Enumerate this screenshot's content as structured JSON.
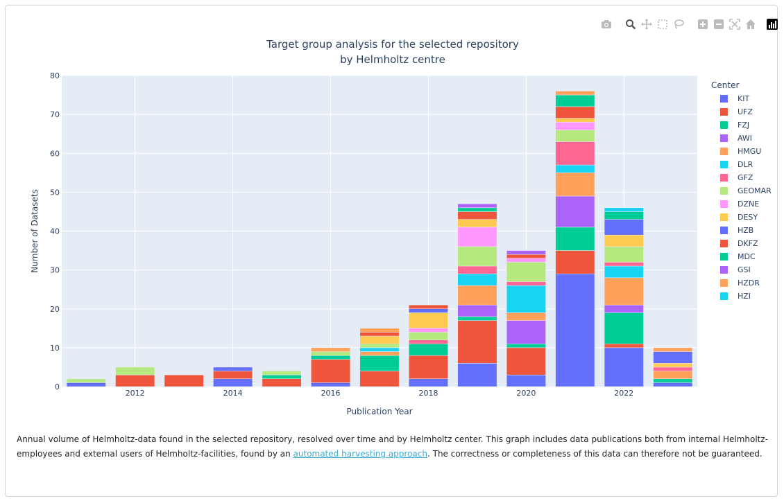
{
  "modebar": {
    "buttons": [
      "camera-icon",
      "zoom-icon",
      "pan-icon",
      "box-select-icon",
      "lasso-select-icon",
      "zoom-in-icon",
      "zoom-out-icon",
      "autoscale-icon",
      "reset-axes-icon",
      "plotly-logo-icon"
    ]
  },
  "caption": {
    "before": "Annual volume of Helmholtz-data found in the selected repository, resolved over time and by Helmholtz center. This graph includes data publications both from internal Helmholtz-employees and external users of Helmholtz-facilities, found by an ",
    "link_text": "automated harvesting approach",
    "after": ". The correctness or completeness of this data can therefore not be guaranteed."
  },
  "chart_data": {
    "type": "bar",
    "stacked": true,
    "title": "Target group analysis for the selected repository",
    "subtitle": "by Helmholtz centre",
    "xlabel": "Publication Year",
    "ylabel": "Number of Datasets",
    "legend_title": "Center",
    "legend_position": "right",
    "ylim": [
      0,
      80
    ],
    "yticks": [
      0,
      10,
      20,
      30,
      40,
      50,
      60,
      70,
      80
    ],
    "xlim": [
      2010.5,
      2023.5
    ],
    "xticks": [
      2012,
      2014,
      2016,
      2018,
      2020,
      2022
    ],
    "categories": [
      2011,
      2012,
      2013,
      2014,
      2015,
      2016,
      2017,
      2018,
      2019,
      2020,
      2021,
      2022,
      2023
    ],
    "series": [
      {
        "name": "KIT",
        "color": "#636efa",
        "values": [
          1,
          0,
          0,
          2,
          0,
          1,
          0,
          2,
          6,
          3,
          29,
          10,
          1
        ]
      },
      {
        "name": "UFZ",
        "color": "#ef553b",
        "values": [
          0,
          3,
          3,
          2,
          2,
          6,
          4,
          6,
          11,
          7,
          6,
          1,
          0
        ]
      },
      {
        "name": "FZJ",
        "color": "#00cc96",
        "values": [
          0,
          0,
          0,
          0,
          1,
          1,
          4,
          3,
          1,
          1,
          6,
          8,
          1
        ]
      },
      {
        "name": "AWI",
        "color": "#ab63fa",
        "values": [
          0,
          0,
          0,
          0,
          0,
          0,
          0,
          0,
          3,
          6,
          8,
          2,
          0
        ]
      },
      {
        "name": "HMGU",
        "color": "#ffa15a",
        "values": [
          0,
          0,
          0,
          0,
          0,
          0,
          1,
          0,
          5,
          2,
          6,
          7,
          2
        ]
      },
      {
        "name": "DLR",
        "color": "#19d3f3",
        "values": [
          0,
          0,
          0,
          0,
          0,
          0,
          1,
          0,
          3,
          7,
          2,
          3,
          0
        ]
      },
      {
        "name": "GFZ",
        "color": "#ff6692",
        "values": [
          0,
          0,
          0,
          0,
          0,
          0,
          0,
          1,
          2,
          1,
          6,
          1,
          1
        ]
      },
      {
        "name": "GEOMAR",
        "color": "#b6e880",
        "values": [
          1,
          2,
          0,
          0,
          1,
          1,
          1,
          2,
          5,
          5,
          3,
          4,
          0
        ]
      },
      {
        "name": "DZNE",
        "color": "#ff97ff",
        "values": [
          0,
          0,
          0,
          0,
          0,
          0,
          0,
          1,
          5,
          1,
          2,
          0,
          0
        ]
      },
      {
        "name": "DESY",
        "color": "#fecb52",
        "values": [
          0,
          0,
          0,
          0,
          0,
          0,
          2,
          4,
          2,
          0,
          1,
          3,
          1
        ]
      },
      {
        "name": "HZB",
        "color": "#636efa",
        "values": [
          0,
          0,
          0,
          1,
          0,
          0,
          0,
          1,
          0,
          0,
          0,
          4,
          3
        ]
      },
      {
        "name": "DKFZ",
        "color": "#ef553b",
        "values": [
          0,
          0,
          0,
          0,
          0,
          0,
          1,
          1,
          2,
          1,
          3,
          0,
          0
        ]
      },
      {
        "name": "MDC",
        "color": "#00cc96",
        "values": [
          0,
          0,
          0,
          0,
          0,
          0,
          0,
          0,
          1,
          0,
          3,
          2,
          0
        ]
      },
      {
        "name": "GSI",
        "color": "#ab63fa",
        "values": [
          0,
          0,
          0,
          0,
          0,
          0,
          0,
          0,
          1,
          1,
          0,
          0,
          0
        ]
      },
      {
        "name": "HZDR",
        "color": "#ffa15a",
        "values": [
          0,
          0,
          0,
          0,
          0,
          1,
          1,
          0,
          0,
          0,
          1,
          0,
          1
        ]
      },
      {
        "name": "HZI",
        "color": "#19d3f3",
        "values": [
          0,
          0,
          0,
          0,
          0,
          0,
          0,
          0,
          0,
          0,
          0,
          1,
          0
        ]
      }
    ]
  }
}
